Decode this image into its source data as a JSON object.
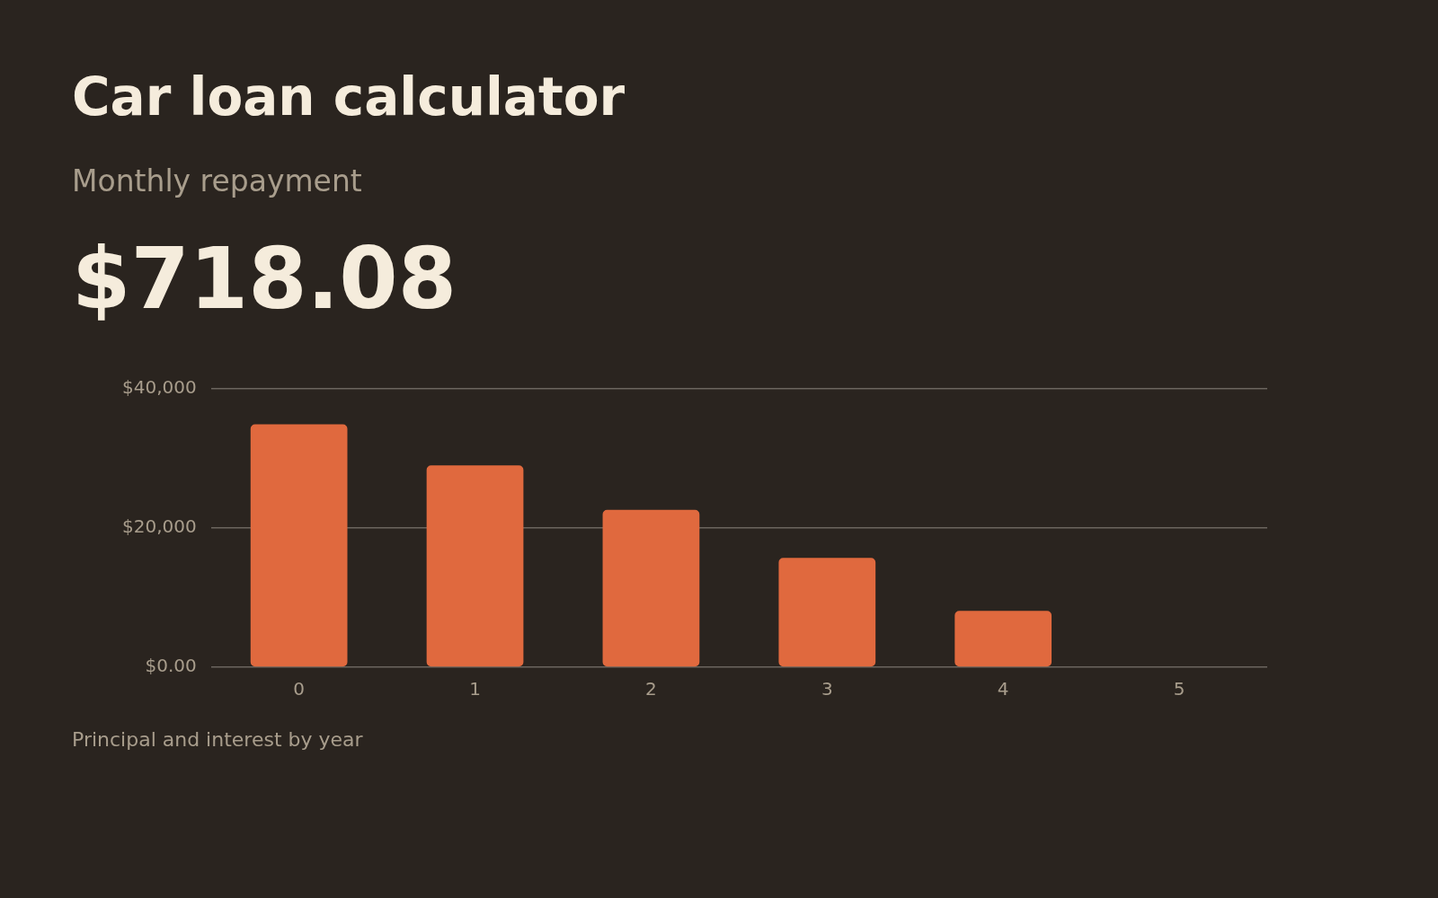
{
  "chart_data": {
    "type": "bar",
    "title": "Car loan calculator",
    "subtitle": "Monthly repayment",
    "annotations": [
      "$718.08",
      "Principal and interest by year"
    ],
    "categories": [
      "0",
      "1",
      "2",
      "3",
      "4",
      "5"
    ],
    "values": [
      34900,
      29000,
      22600,
      15700,
      8100,
      0
    ],
    "color": "#e0693e",
    "ylim": [
      0,
      40000
    ],
    "yticks": [
      {
        "value": 0,
        "label": "$0.00"
      },
      {
        "value": 20000,
        "label": "$20,000"
      },
      {
        "value": 40000,
        "label": "$40,000"
      }
    ],
    "grid": "y",
    "legend": false
  }
}
